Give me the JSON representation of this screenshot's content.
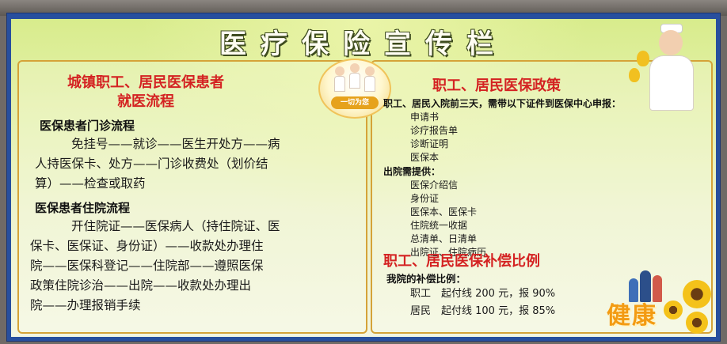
{
  "poster": {
    "title": "医疗保险宣传栏",
    "left": {
      "heading_line1": "城镇职工、居民医保患者",
      "heading_line2": "就医流程",
      "outpatient": {
        "title": "医保患者门诊流程",
        "lines": [
          "免挂号——就诊——医生开处方——病",
          "人持医保卡、处方——门诊收费处（划价结",
          "算）——检查或取药"
        ]
      },
      "inpatient": {
        "title": "医保患者住院流程",
        "lines": [
          "开住院证——医保病人（持住院证、医",
          "保卡、医保证、身份证）——收款处办理住",
          "院——医保科登记——住院部——遵照医保",
          "政策住院诊治——出院——收款处办理出",
          "院——办理报销手续"
        ]
      }
    },
    "right": {
      "policy_title": "职工、居民医保政策",
      "admission_note": "职工、居民入院前三天，需带以下证件到医保中心申报：",
      "admission_items": [
        "申请书",
        "诊疗报告单",
        "诊断证明",
        "医保本"
      ],
      "discharge_title": "出院需提供：",
      "discharge_items": [
        "医保介绍信",
        "身份证",
        "医保本、医保卡",
        "住院统一收据",
        "总清单、日清单",
        "出院证、住院病历"
      ],
      "ratio_title": "职工、居民医保补偿比例",
      "hospital_ratio_title": "我院的补偿比例：",
      "ratios": [
        "职工　起付线 200 元，报 90%",
        "居民　起付线 100 元，报 85%"
      ]
    },
    "logo_text": "一切为您",
    "health_text": "健康"
  }
}
